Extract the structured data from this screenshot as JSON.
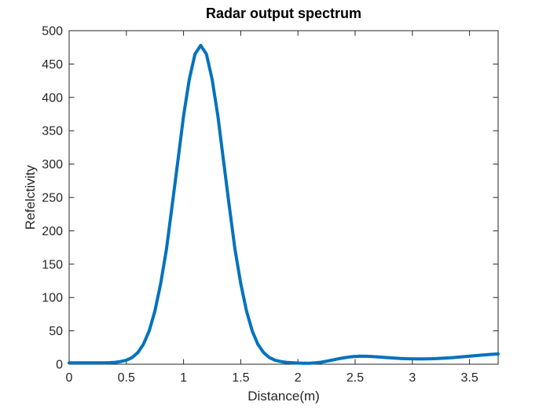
{
  "figure": {
    "background": "#ffffff"
  },
  "chart_data": {
    "type": "line",
    "title": "Radar output spectrum",
    "xlabel": "Distance(m)",
    "ylabel": "Refelctivity",
    "xlim": [
      0,
      3.75
    ],
    "ylim": [
      0,
      500
    ],
    "xticks": [
      0,
      0.5,
      1,
      1.5,
      2,
      2.5,
      3,
      3.5
    ],
    "yticks": [
      0,
      50,
      100,
      150,
      200,
      250,
      300,
      350,
      400,
      450,
      500
    ],
    "grid": false,
    "box": true,
    "tick_direction": "in",
    "legend": null,
    "line_color": "#0072BD",
    "line_width": 4,
    "axis_color": "#262626",
    "series": [
      {
        "name": "reflectivity",
        "points": [
          [
            0.0,
            2
          ],
          [
            0.05,
            2
          ],
          [
            0.1,
            2
          ],
          [
            0.15,
            2
          ],
          [
            0.2,
            2
          ],
          [
            0.25,
            2
          ],
          [
            0.3,
            2.1
          ],
          [
            0.35,
            2.3
          ],
          [
            0.4,
            2.8
          ],
          [
            0.45,
            4.0
          ],
          [
            0.5,
            6.0
          ],
          [
            0.55,
            10.0
          ],
          [
            0.6,
            17.5
          ],
          [
            0.65,
            30
          ],
          [
            0.7,
            50
          ],
          [
            0.75,
            80
          ],
          [
            0.8,
            121
          ],
          [
            0.85,
            172
          ],
          [
            0.9,
            237
          ],
          [
            0.95,
            304
          ],
          [
            1.0,
            372
          ],
          [
            1.05,
            427
          ],
          [
            1.1,
            465
          ],
          [
            1.15,
            478
          ],
          [
            1.2,
            465
          ],
          [
            1.25,
            427
          ],
          [
            1.3,
            372
          ],
          [
            1.35,
            304
          ],
          [
            1.4,
            237
          ],
          [
            1.45,
            172
          ],
          [
            1.5,
            121
          ],
          [
            1.55,
            80
          ],
          [
            1.6,
            50
          ],
          [
            1.65,
            30
          ],
          [
            1.7,
            17.5
          ],
          [
            1.75,
            10.0
          ],
          [
            1.8,
            6.0
          ],
          [
            1.85,
            4.0
          ],
          [
            1.9,
            2.8
          ],
          [
            1.95,
            2.2
          ],
          [
            2.0,
            1.8
          ],
          [
            2.05,
            1.5
          ],
          [
            2.1,
            1.5
          ],
          [
            2.15,
            2.0
          ],
          [
            2.2,
            3.0
          ],
          [
            2.25,
            4.5
          ],
          [
            2.3,
            6.2
          ],
          [
            2.35,
            8.0
          ],
          [
            2.4,
            9.6
          ],
          [
            2.45,
            10.9
          ],
          [
            2.5,
            11.7
          ],
          [
            2.55,
            12.0
          ],
          [
            2.6,
            11.9
          ],
          [
            2.65,
            11.5
          ],
          [
            2.7,
            11.0
          ],
          [
            2.75,
            10.3
          ],
          [
            2.8,
            9.7
          ],
          [
            2.85,
            9.1
          ],
          [
            2.9,
            8.6
          ],
          [
            2.95,
            8.3
          ],
          [
            3.0,
            8.1
          ],
          [
            3.05,
            8.0
          ],
          [
            3.1,
            8.0
          ],
          [
            3.15,
            8.1
          ],
          [
            3.2,
            8.4
          ],
          [
            3.25,
            8.8
          ],
          [
            3.3,
            9.3
          ],
          [
            3.35,
            9.9
          ],
          [
            3.4,
            10.6
          ],
          [
            3.45,
            11.3
          ],
          [
            3.5,
            12.1
          ],
          [
            3.55,
            12.9
          ],
          [
            3.6,
            13.6
          ],
          [
            3.65,
            14.3
          ],
          [
            3.7,
            14.9
          ],
          [
            3.75,
            15.4
          ]
        ]
      }
    ]
  }
}
